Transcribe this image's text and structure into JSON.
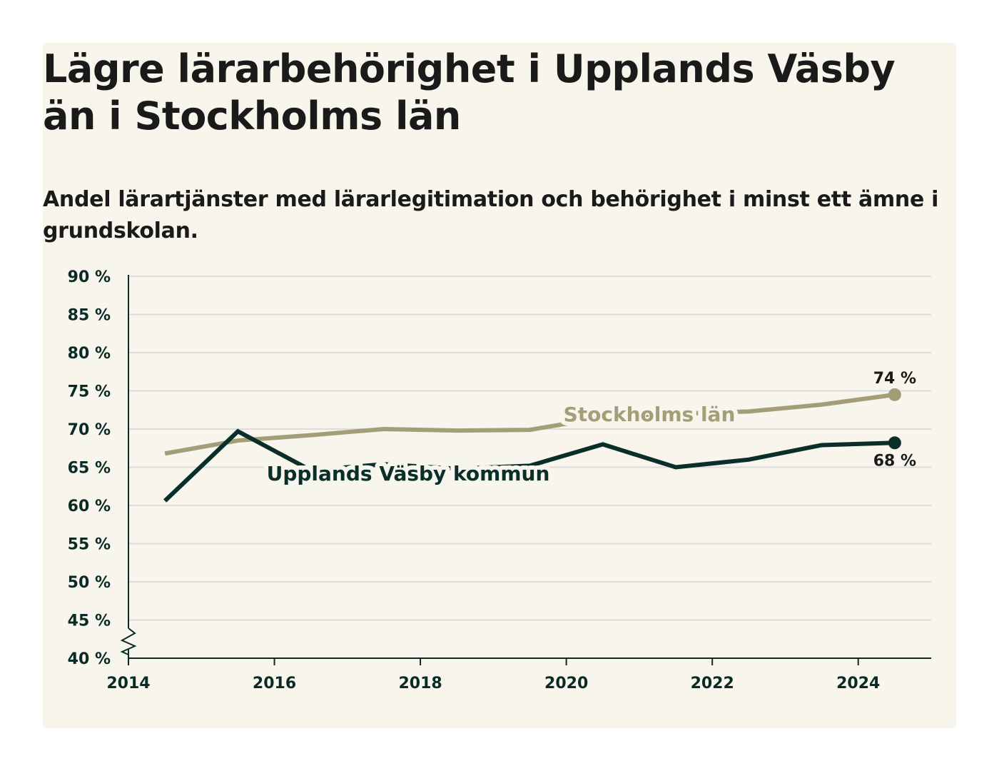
{
  "title": "Lägre lärarbehörighet i Upplands Väsby än i Stockholms län",
  "subtitle": "Andel lärartjänster med lärarlegitimation och behörighet i minst ett ämne i grundskolan.",
  "colors": {
    "background": "#f7f5ec",
    "stockholm": "#a39e78",
    "vasby": "#0a2e2a",
    "grid": "#dcdcdc",
    "axis": "#0a2a26"
  },
  "chart_data": {
    "type": "line",
    "xlim": [
      2014,
      2025
    ],
    "ylim": [
      40,
      90
    ],
    "x_ticks": [
      2014,
      2016,
      2018,
      2020,
      2022,
      2024
    ],
    "x_tick_labels": [
      "2014",
      "2016",
      "2018",
      "2020",
      "2022",
      "2024"
    ],
    "y_ticks": [
      40,
      45,
      50,
      55,
      60,
      65,
      70,
      75,
      80,
      85,
      90
    ],
    "y_tick_labels": [
      "40 %",
      "45 %",
      "50 %",
      "55 %",
      "60 %",
      "65 %",
      "70 %",
      "75 %",
      "80 %",
      "85 %",
      "90 %"
    ],
    "axis_break": true,
    "grid": true,
    "series": [
      {
        "name": "Stockholms län",
        "color": "#a39e78",
        "x": [
          2014.5,
          2015.5,
          2016.5,
          2017.5,
          2018.5,
          2019.5,
          2020.5,
          2021.5,
          2022.5,
          2023.5,
          2024.5
        ],
        "values": [
          66.8,
          68.5,
          69.2,
          70.0,
          69.8,
          69.9,
          71.5,
          72.0,
          72.3,
          73.2,
          74.5
        ],
        "end_label": "74 %"
      },
      {
        "name": "Upplands Väsby kommun",
        "color": "#0a2e2a",
        "x": [
          2014.5,
          2015.5,
          2016.5,
          2017.5,
          2018.5,
          2019.5,
          2020.5,
          2021.5,
          2022.5,
          2023.5,
          2024.5
        ],
        "values": [
          60.6,
          69.7,
          64.6,
          65.4,
          64.8,
          65.2,
          68.0,
          65.0,
          66.0,
          67.9,
          68.2
        ],
        "end_label": "68 %"
      }
    ]
  }
}
